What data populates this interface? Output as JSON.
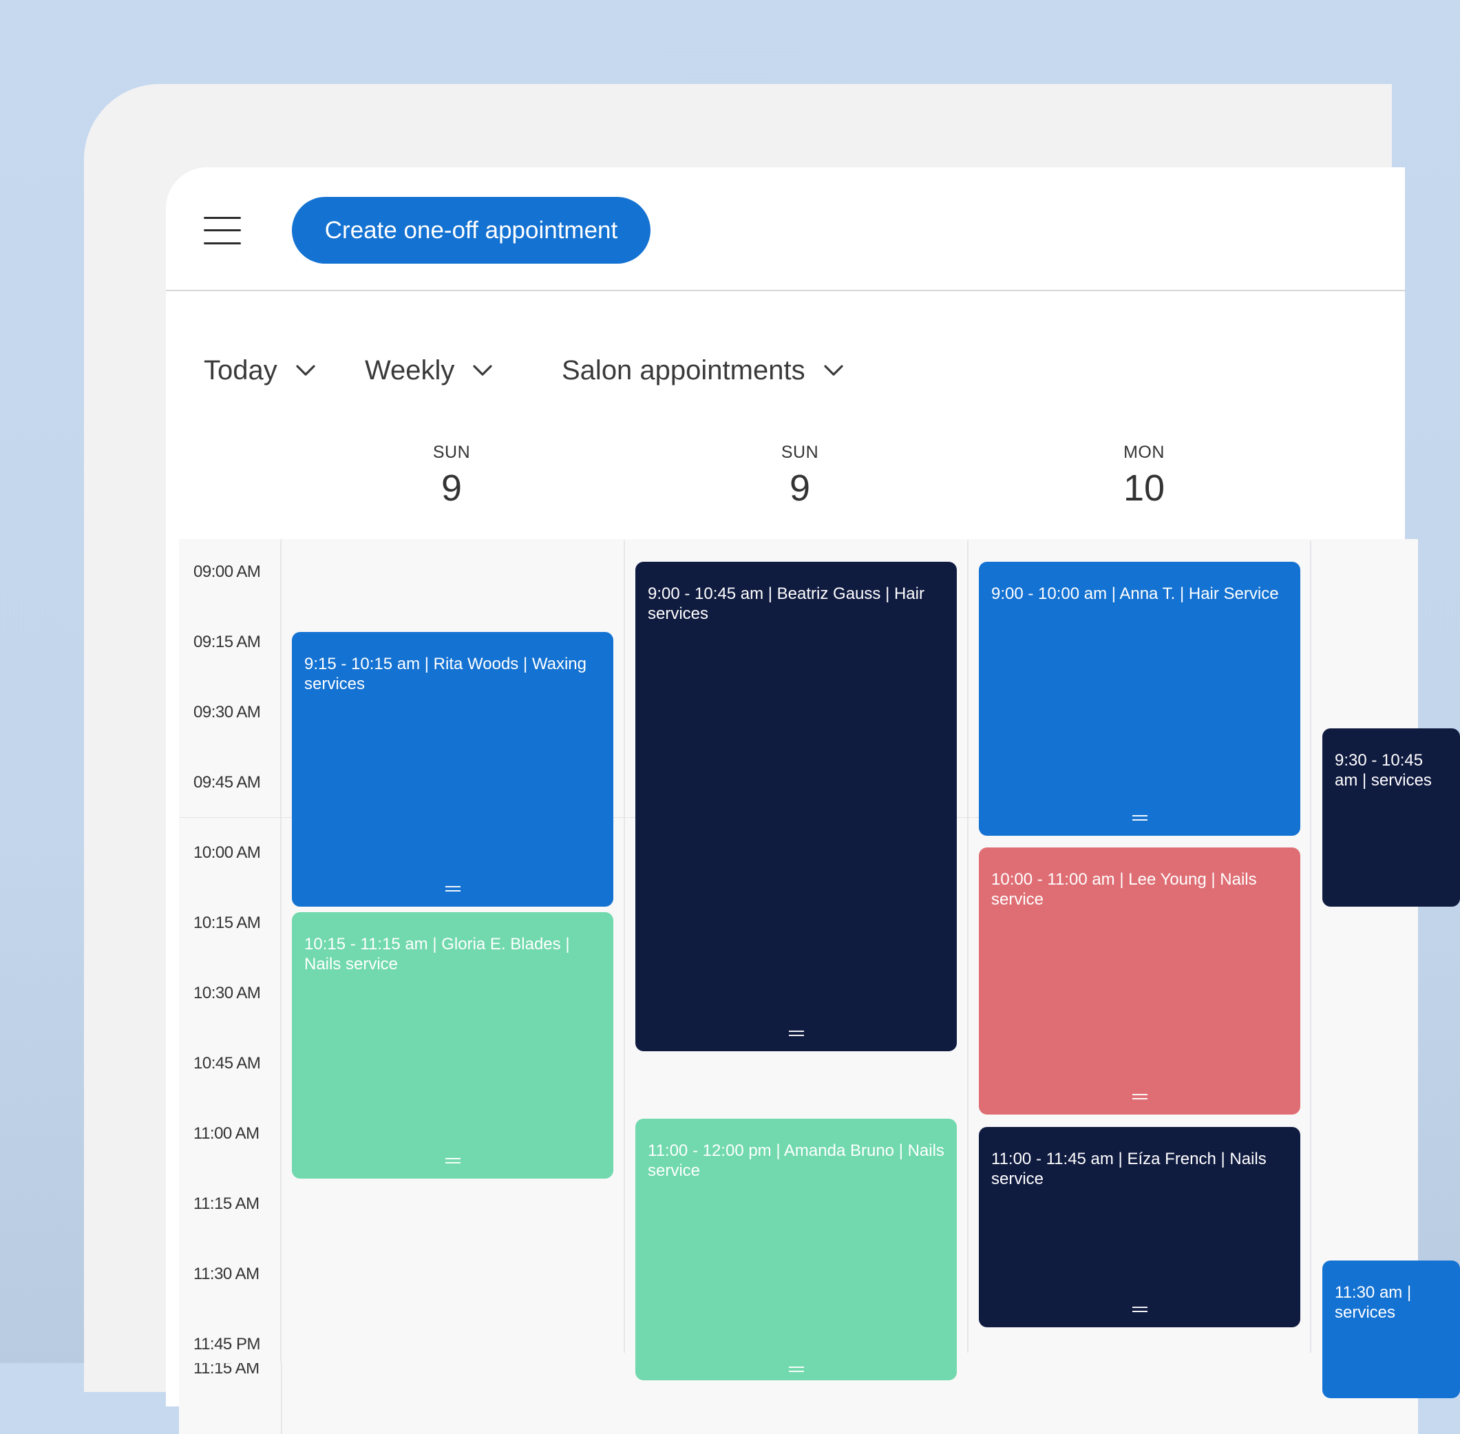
{
  "toolbar": {
    "create_label": "Create one-off appointment"
  },
  "filters": {
    "date": "Today",
    "view": "Weekly",
    "calendar": "Salon appointments"
  },
  "days": [
    {
      "dow": "SUN",
      "num": "9"
    },
    {
      "dow": "SUN",
      "num": "9"
    },
    {
      "dow": "MON",
      "num": "10"
    }
  ],
  "times": [
    "09:00 AM",
    "09:15 AM",
    "09:30 AM",
    "09:45 AM",
    "10:00 AM",
    "10:15 AM",
    "10:30 AM",
    "10:45 AM",
    "11:00 AM",
    "11:15 AM",
    "11:30 AM",
    "11:45 PM"
  ],
  "appointments": {
    "rita": "9:15 - 10:15 am | Rita Woods | Waxing services",
    "gloria": "10:15 - 11:15 am | Gloria E. Blades | Nails service",
    "beatriz": "9:00 - 10:45 am | Beatriz Gauss | Hair services",
    "amanda": "11:00 - 12:00 pm | Amanda Bruno | Nails service",
    "anna": "9:00 - 10:00 am | Anna T. | Hair Service",
    "lee": "10:00 - 11:00 am | Lee Young | Nails service",
    "eiza": "11:00 - 11:45 am | Eíza French | Nails service",
    "partial_a": "9:30 - 10:45 am | services",
    "partial_b": "11:30 am | services"
  },
  "colors": {
    "blue": "#1472d2",
    "navy": "#101b40",
    "mint": "#71d9ad",
    "coral": "#df6e74"
  },
  "icons": {
    "menu": "hamburger-icon",
    "dropdown": "chevron-down-icon",
    "drag": "drag-handle-icon"
  }
}
